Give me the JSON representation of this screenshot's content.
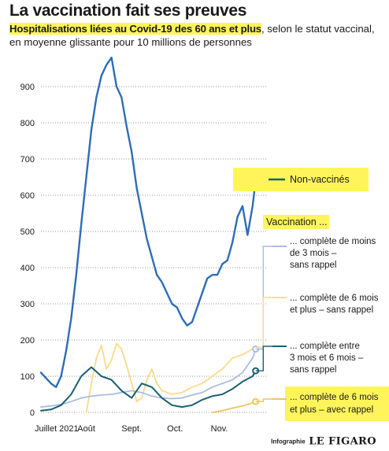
{
  "header": {
    "title": "La vaccination fait ses preuves",
    "subtitle_highlight": "Hospitalisations liées au Covid-19 des 60 ans et plus",
    "subtitle_rest": ", selon le statut vaccinal, en moyenne glissante pour 10 millions de personnes"
  },
  "credit": {
    "label": "Infographie",
    "brand": "LE FIGARO"
  },
  "legend_heading": "Vaccination ...",
  "colors": {
    "unvaccinated": "#2f6db5",
    "under3m": "#a9bce3",
    "over6m_no_booster": "#fcd98c",
    "between3and6m": "#1b5e72",
    "over6m_booster": "#f1c45a",
    "highlight": "#fff55a",
    "grid": "#7a7a7a"
  },
  "chart_data": {
    "type": "line",
    "x_unit": "weeks since 1 July 2021",
    "xlim": [
      0,
      22.5
    ],
    "ylim": [
      0,
      1000
    ],
    "grid": "dotted horizontal",
    "x_ticks": [
      {
        "label": "Juillet 2021",
        "x": 0
      },
      {
        "label": "Août",
        "x": 4.5
      },
      {
        "label": "Sept.",
        "x": 9
      },
      {
        "label": "Oct.",
        "x": 13.3
      },
      {
        "label": "Nov.",
        "x": 17.7
      }
    ],
    "y_ticks": [
      0,
      100,
      200,
      300,
      400,
      500,
      600,
      700,
      800,
      900
    ],
    "series": [
      {
        "key": "unvaccinated",
        "name": "Non-vaccinés",
        "color": "#2f6db5",
        "width": 2.4,
        "marker": true,
        "x": [
          0,
          0.5,
          1,
          1.5,
          2,
          2.5,
          3,
          3.5,
          4,
          4.5,
          5,
          5.5,
          6,
          6.5,
          7,
          7.5,
          8,
          8.5,
          9,
          9.5,
          10,
          10.5,
          11,
          11.5,
          12,
          12.5,
          13,
          13.5,
          14,
          14.5,
          15,
          15.5,
          16,
          16.5,
          17,
          17.5,
          18,
          18.5,
          19,
          19.5,
          20,
          20.5,
          21,
          21.3
        ],
        "y": [
          110,
          95,
          80,
          70,
          100,
          170,
          260,
          380,
          520,
          650,
          780,
          870,
          930,
          960,
          980,
          900,
          870,
          790,
          720,
          620,
          550,
          480,
          430,
          380,
          360,
          330,
          300,
          290,
          260,
          240,
          250,
          290,
          330,
          370,
          380,
          380,
          410,
          420,
          470,
          540,
          570,
          490,
          570,
          640
        ]
      },
      {
        "key": "under3m",
        "name": "... complète de moins de 3 mois – sans rappel",
        "color": "#a9bce3",
        "width": 1.8,
        "marker": true,
        "x": [
          0,
          1,
          2,
          3,
          4,
          5,
          6,
          7,
          8,
          9,
          10,
          11,
          12,
          13,
          14,
          15,
          16,
          17,
          18,
          19,
          20,
          21,
          21.3
        ],
        "y": [
          15,
          18,
          22,
          30,
          40,
          45,
          48,
          50,
          55,
          60,
          55,
          45,
          40,
          38,
          40,
          48,
          55,
          70,
          80,
          90,
          110,
          150,
          175
        ]
      },
      {
        "key": "over6m_no_booster",
        "name": "... complète de 6 mois et plus – sans rappel",
        "color": "#fcd98c",
        "width": 1.8,
        "marker": false,
        "x": [
          4.5,
          5,
          5.5,
          6,
          6.5,
          7,
          7.5,
          8,
          8.5,
          9,
          9.5,
          10,
          10.5,
          11,
          11.5,
          12,
          13,
          14,
          15,
          16,
          17,
          18,
          19,
          20,
          21,
          21.3
        ],
        "y": [
          0,
          80,
          150,
          185,
          120,
          145,
          190,
          175,
          130,
          80,
          30,
          40,
          90,
          120,
          80,
          60,
          50,
          55,
          70,
          80,
          100,
          120,
          150,
          160,
          175,
          180
        ]
      },
      {
        "key": "between3and6m",
        "name": "... complète entre 3 mois et 6 mois – sans rappel",
        "color": "#1b5e72",
        "width": 2,
        "marker": true,
        "x": [
          0,
          1,
          2,
          3,
          4,
          5,
          6,
          7,
          8,
          9,
          10,
          11,
          12,
          13,
          14,
          15,
          16,
          17,
          18,
          19,
          20,
          21,
          21.3
        ],
        "y": [
          5,
          8,
          20,
          50,
          100,
          125,
          100,
          90,
          60,
          40,
          80,
          70,
          40,
          20,
          15,
          20,
          35,
          45,
          50,
          65,
          85,
          100,
          115
        ]
      },
      {
        "key": "over6m_booster",
        "name": "... complète de 6 mois et plus – avec rappel",
        "color": "#f1c45a",
        "width": 1.8,
        "marker": true,
        "x": [
          17,
          18,
          19,
          20,
          21,
          21.3
        ],
        "y": [
          0,
          5,
          12,
          18,
          26,
          30
        ]
      }
    ]
  }
}
